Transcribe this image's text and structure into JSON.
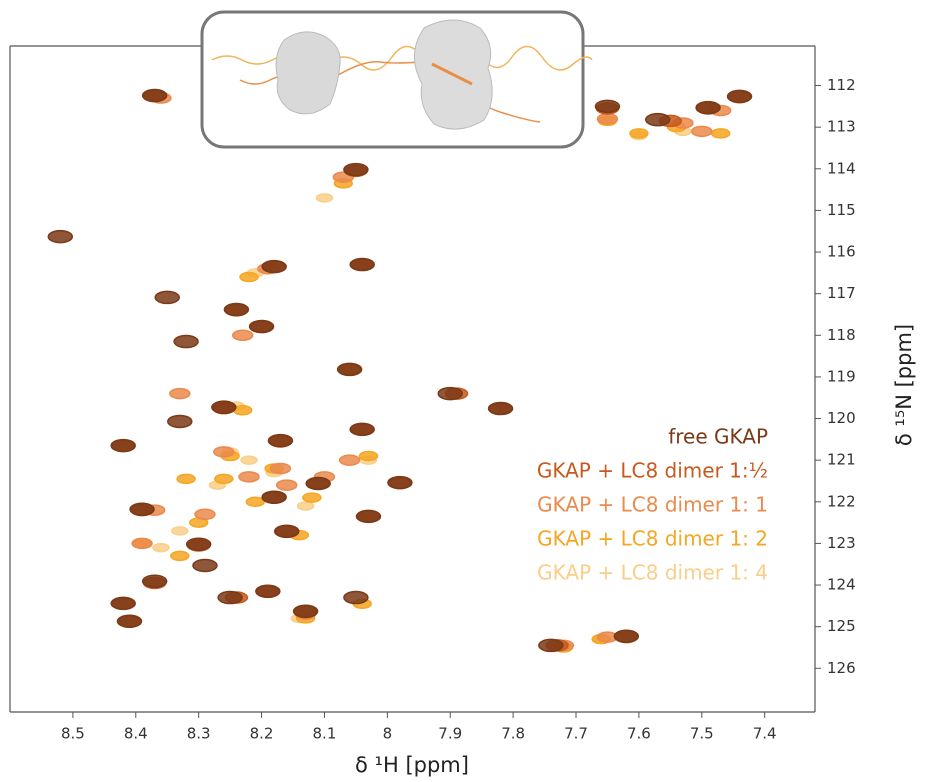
{
  "chart_data": {
    "type": "scatter",
    "x_label": "δ ¹H [ppm]",
    "y_label": "δ ¹⁵N [ppm]",
    "xlim": [
      8.6,
      7.32
    ],
    "ylim": [
      111.05,
      127.05
    ],
    "xticks": [
      8.5,
      8.4,
      8.3,
      8.2,
      8.1,
      8,
      7.9,
      7.8,
      7.7,
      7.6,
      7.5,
      7.4
    ],
    "yticks": [
      112,
      113,
      114,
      115,
      116,
      117,
      118,
      119,
      120,
      121,
      122,
      123,
      124,
      125,
      126
    ],
    "legend": "right",
    "series": [
      {
        "name": "free GKAP",
        "color": "#7a3a17",
        "x": [
          8.37,
          7.65,
          7.44,
          8.05,
          8.52,
          8.18,
          8.04,
          8.35,
          8.24,
          8.2,
          8.32,
          8.06,
          7.9,
          7.82,
          8.26,
          8.33,
          8.42,
          8.04,
          8.17,
          8.11,
          7.98,
          8.18,
          8.39,
          8.03,
          8.16,
          8.3,
          8.29,
          8.37,
          8.25,
          8.19,
          8.42,
          8.41,
          8.13,
          8.05,
          7.74,
          7.62,
          7.57,
          7.49
        ],
        "values": [
          112.24,
          112.5,
          112.26,
          114.02,
          115.63,
          116.35,
          116.3,
          117.09,
          117.38,
          117.79,
          118.15,
          118.82,
          119.4,
          119.76,
          119.73,
          120.07,
          120.65,
          120.26,
          120.53,
          121.56,
          121.54,
          121.89,
          122.18,
          122.35,
          122.71,
          123.02,
          123.53,
          123.91,
          124.3,
          124.15,
          124.44,
          124.87,
          124.63,
          124.3,
          125.45,
          125.23,
          112.82,
          112.53
        ]
      },
      {
        "name": "GKAP + LC8 dimer 1:½",
        "color": "#c65a1e",
        "x": [
          8.37,
          7.65,
          7.44,
          8.05,
          8.18,
          8.04,
          8.24,
          8.2,
          8.06,
          7.89,
          7.82,
          8.26,
          8.42,
          8.04,
          8.17,
          8.11,
          7.98,
          8.18,
          8.39,
          8.03,
          8.16,
          8.3,
          8.37,
          8.24,
          8.19,
          8.42,
          8.41,
          8.13,
          7.73,
          7.62,
          7.55,
          7.49
        ],
        "values": [
          112.25,
          112.55,
          112.28,
          114.05,
          116.35,
          116.3,
          117.4,
          117.8,
          118.82,
          119.4,
          119.76,
          119.75,
          120.65,
          120.25,
          120.55,
          121.55,
          121.55,
          121.9,
          122.2,
          122.35,
          122.7,
          123.05,
          123.95,
          124.3,
          124.15,
          124.45,
          124.88,
          124.65,
          125.45,
          125.25,
          112.85,
          112.55
        ]
      },
      {
        "name": "GKAP + LC8 dimer 1: 1",
        "color": "#ea8a4c",
        "x": [
          8.36,
          7.65,
          7.47,
          8.07,
          8.19,
          8.26,
          8.23,
          8.26,
          8.17,
          8.1,
          8.29,
          8.37,
          8.22,
          8.06,
          8.39,
          8.13,
          7.72,
          7.65,
          7.53,
          7.5,
          8.16,
          8.33
        ],
        "values": [
          112.3,
          112.8,
          112.6,
          114.2,
          116.4,
          119.7,
          118.0,
          120.8,
          121.2,
          121.4,
          122.3,
          122.2,
          121.4,
          121.0,
          123.0,
          124.7,
          125.45,
          125.25,
          112.9,
          113.1,
          121.6,
          119.4
        ]
      },
      {
        "name": "GKAP + LC8 dimer 1: 2",
        "color": "#f5a623",
        "x": [
          7.65,
          7.6,
          7.54,
          7.47,
          8.07,
          8.22,
          8.25,
          8.18,
          8.12,
          8.21,
          8.14,
          8.3,
          8.33,
          8.23,
          8.39,
          8.03,
          8.13,
          7.72,
          7.66,
          8.04,
          8.32,
          8.26
        ],
        "values": [
          112.85,
          113.15,
          113.0,
          113.15,
          114.35,
          116.6,
          120.9,
          121.2,
          121.9,
          122.0,
          122.8,
          122.5,
          123.3,
          119.8,
          123.0,
          120.9,
          124.8,
          125.5,
          125.3,
          124.45,
          121.45,
          121.45
        ]
      },
      {
        "name": "GKAP + LC8 dimer 1: 4",
        "color": "#f9cf88",
        "x": [
          7.6,
          7.53,
          8.21,
          8.25,
          8.22,
          8.18,
          8.13,
          8.33,
          8.36,
          8.24,
          8.03,
          8.14,
          8.1,
          8.27,
          7.66
        ],
        "values": [
          113.2,
          113.1,
          116.5,
          120.8,
          121.0,
          121.3,
          122.1,
          122.7,
          123.1,
          119.7,
          121.0,
          124.8,
          114.7,
          121.6,
          125.3
        ]
      }
    ]
  }
}
